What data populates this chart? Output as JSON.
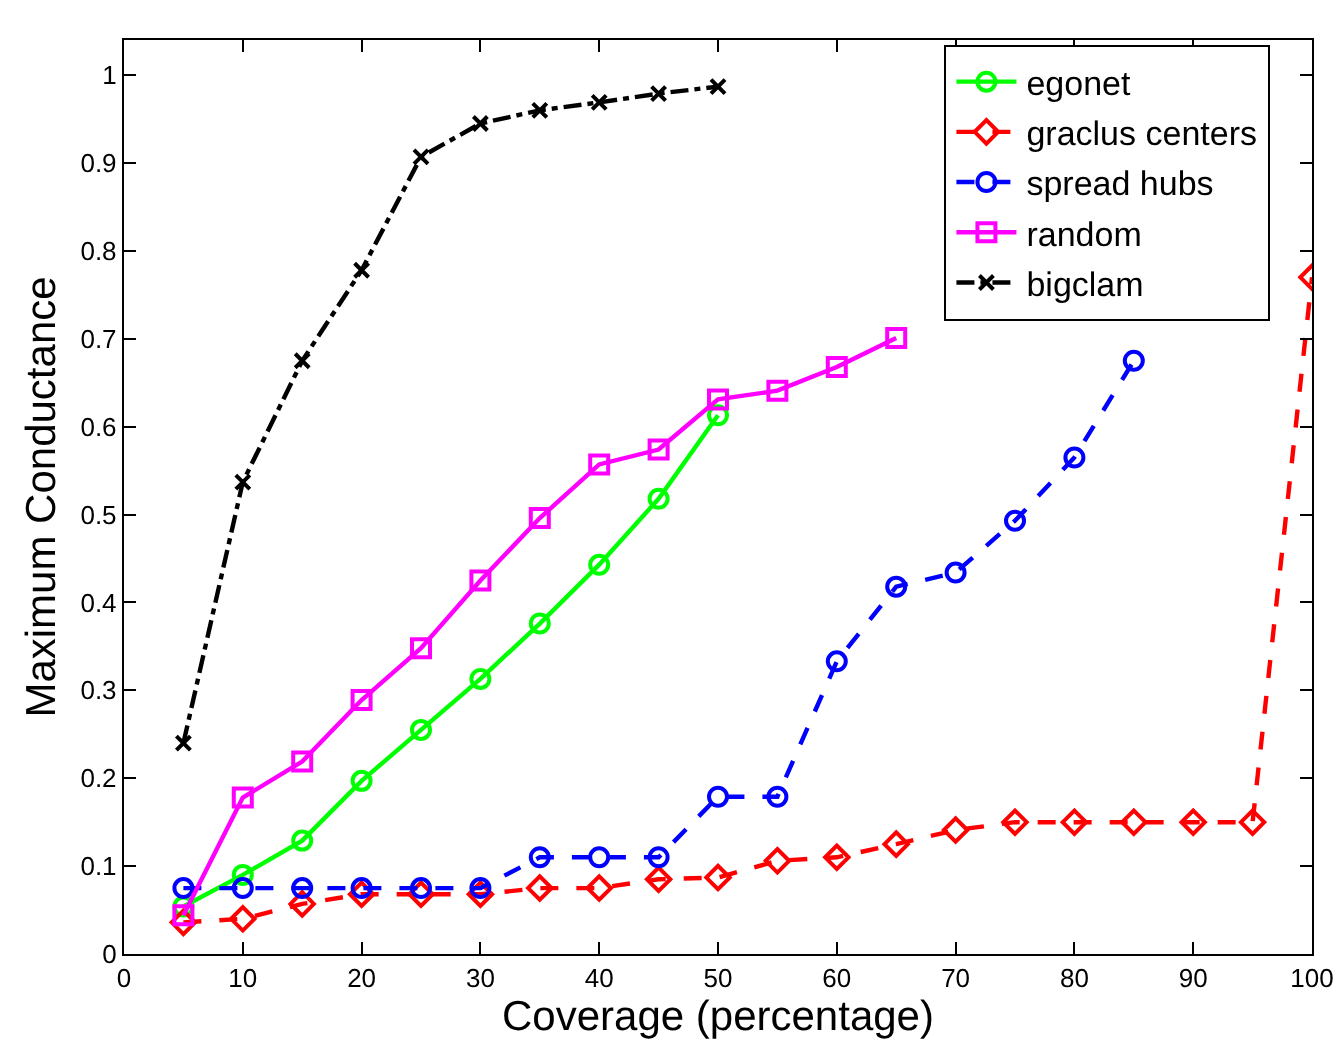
{
  "chart_data": {
    "type": "line",
    "xlabel": "Coverage (percentage)",
    "ylabel": "Maximum Conductance",
    "xlim": [
      0,
      100
    ],
    "xticks": [
      0,
      10,
      20,
      30,
      40,
      50,
      60,
      70,
      80,
      90,
      100
    ],
    "ylim": [
      0,
      1.04
    ],
    "yticks": [
      0,
      0.1,
      0.2,
      0.3,
      0.4,
      0.5,
      0.6,
      0.7,
      0.8,
      0.9,
      1
    ],
    "grid": false,
    "legend": "top right",
    "series": [
      {
        "name": "egonet",
        "color": "#00ff00",
        "marker": "circle",
        "line_style": "solid",
        "x": [
          5,
          10,
          15,
          20,
          25,
          30,
          35,
          40,
          45,
          50
        ],
        "values": [
          0.054,
          0.09,
          0.129,
          0.197,
          0.255,
          0.313,
          0.376,
          0.443,
          0.518,
          0.613
        ]
      },
      {
        "name": "graclus centers",
        "color": "#ff0000",
        "marker": "diamond",
        "line_style": "dashed",
        "x": [
          5,
          10,
          15,
          20,
          25,
          30,
          35,
          40,
          45,
          50,
          55,
          60,
          65,
          70,
          75,
          80,
          85,
          90,
          95,
          100
        ],
        "values": [
          0.036,
          0.04,
          0.057,
          0.068,
          0.068,
          0.068,
          0.075,
          0.075,
          0.085,
          0.087,
          0.106,
          0.11,
          0.125,
          0.141,
          0.15,
          0.15,
          0.15,
          0.15,
          0.15,
          0.77
        ]
      },
      {
        "name": "spread hubs",
        "color": "#0000ff",
        "marker": "circle",
        "line_style": "dashed",
        "x": [
          5,
          10,
          15,
          20,
          25,
          30,
          35,
          40,
          45,
          50,
          55,
          60,
          65,
          70,
          75,
          80,
          85
        ],
        "values": [
          0.075,
          0.075,
          0.075,
          0.075,
          0.075,
          0.075,
          0.11,
          0.11,
          0.11,
          0.179,
          0.179,
          0.333,
          0.418,
          0.434,
          0.493,
          0.565,
          0.675
        ]
      },
      {
        "name": "random",
        "color": "#ff00ff",
        "marker": "square",
        "line_style": "solid",
        "x": [
          5,
          10,
          15,
          20,
          25,
          30,
          35,
          40,
          45,
          50,
          55,
          60,
          65
        ],
        "values": [
          0.044,
          0.178,
          0.219,
          0.289,
          0.348,
          0.425,
          0.496,
          0.557,
          0.574,
          0.631,
          0.641,
          0.668,
          0.701
        ]
      },
      {
        "name": "bigclam",
        "color": "#000000",
        "marker": "cross",
        "line_style": "dashdot",
        "x": [
          5,
          10,
          15,
          20,
          25,
          30,
          35,
          40,
          45,
          50
        ],
        "values": [
          0.24,
          0.537,
          0.675,
          0.778,
          0.907,
          0.945,
          0.96,
          0.969,
          0.979,
          0.987
        ]
      }
    ]
  }
}
